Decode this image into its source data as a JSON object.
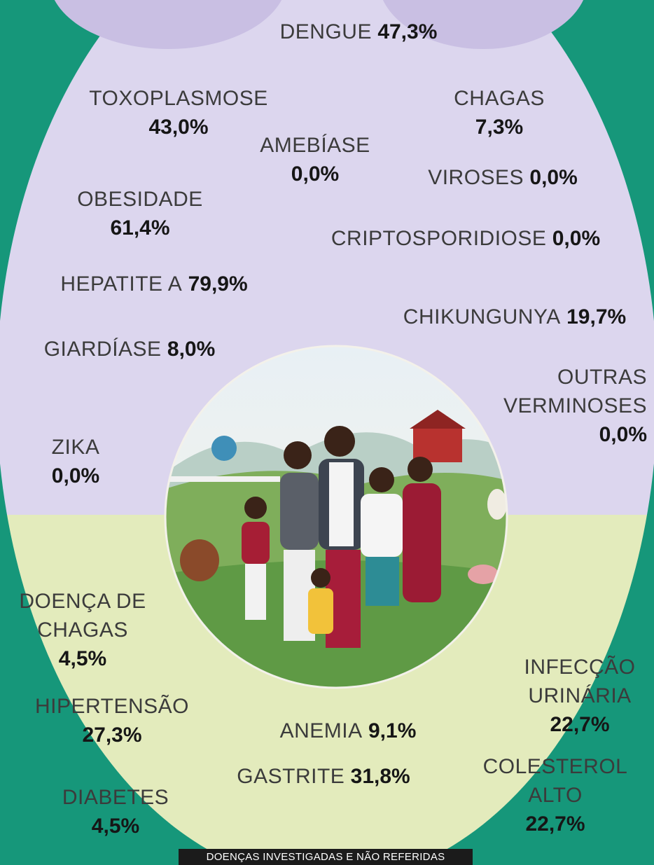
{
  "items": [
    {
      "name": "DENGUE",
      "value": "47,3%"
    },
    {
      "name": "TOXOPLASMOSE",
      "value": "43,0%"
    },
    {
      "name": "CHAGAS",
      "value": "7,3%"
    },
    {
      "name": "AMEBÍASE",
      "value": "0,0%"
    },
    {
      "name": "VIROSES",
      "value": "0,0%"
    },
    {
      "name": "OBESIDADE",
      "value": "61,4%"
    },
    {
      "name": "CRIPTOSPORIDIOSE",
      "value": "0,0%"
    },
    {
      "name": "HEPATITE A",
      "value": "79,9%"
    },
    {
      "name": "CHIKUNGUNYA",
      "value": "19,7%"
    },
    {
      "name": "GIARDÍASE",
      "value": "8,0%"
    },
    {
      "name": "OUTRAS VERMINOSES",
      "value": "0,0%"
    },
    {
      "name": "ZIKA",
      "value": "0,0%"
    },
    {
      "name": "DOENÇA DE CHAGAS",
      "value": "4,5%"
    },
    {
      "name": "INFECÇÃO URINÁRIA",
      "value": "22,7%"
    },
    {
      "name": "HIPERTENSÃO",
      "value": "27,3%"
    },
    {
      "name": "ANEMIA",
      "value": "9,1%"
    },
    {
      "name": "GASTRITE",
      "value": "31,8%"
    },
    {
      "name": "COLESTEROL ALTO",
      "value": "22,7%"
    },
    {
      "name": "DIABETES",
      "value": "4,5%"
    }
  ],
  "footer": "DOENÇAS INVESTIGADAS E NÃO REFERIDAS"
}
